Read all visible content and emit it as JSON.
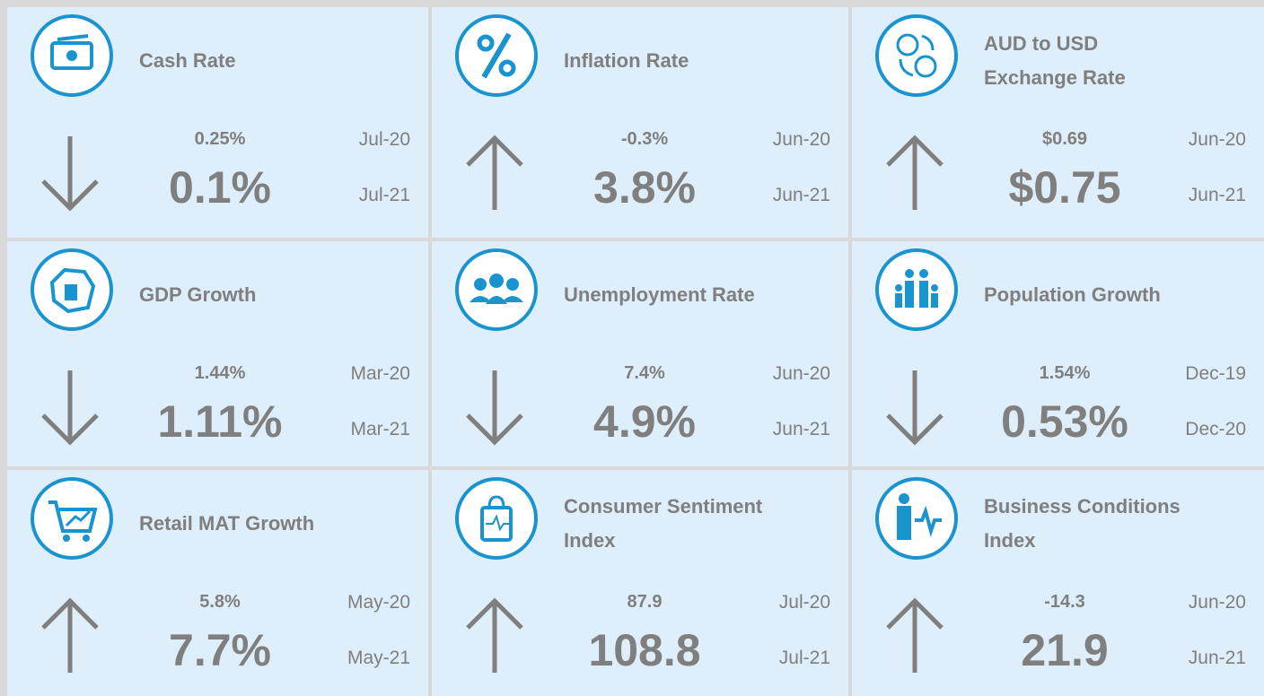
{
  "cards": [
    {
      "title": [
        "Cash Rate"
      ],
      "direction": "down",
      "previous": "0.25%",
      "previous_date": "Jul-20",
      "current": "0.1%",
      "current_date": "Jul-21"
    },
    {
      "title": [
        "Inflation Rate"
      ],
      "direction": "up",
      "previous": "-0.3%",
      "previous_date": "Jun-20",
      "current": "3.8%",
      "current_date": "Jun-21"
    },
    {
      "title": [
        "AUD to USD",
        "Exchange Rate"
      ],
      "direction": "up",
      "previous": "$0.69",
      "previous_date": "Jun-20",
      "current": "$0.75",
      "current_date": "Jun-21"
    },
    {
      "title": [
        "GDP Growth"
      ],
      "direction": "down",
      "previous": "1.44%",
      "previous_date": "Mar-20",
      "current": "1.11%",
      "current_date": "Mar-21"
    },
    {
      "title": [
        "Unemployment Rate"
      ],
      "direction": "down",
      "previous": "7.4%",
      "previous_date": "Jun-20",
      "current": "4.9%",
      "current_date": "Jun-21"
    },
    {
      "title": [
        "Population Growth"
      ],
      "direction": "down",
      "previous": "1.54%",
      "previous_date": "Dec-19",
      "current": "0.53%",
      "current_date": "Dec-20"
    },
    {
      "title": [
        "Retail MAT Growth"
      ],
      "direction": "up",
      "previous": "5.8%",
      "previous_date": "May-20",
      "current": "7.7%",
      "current_date": "May-21"
    },
    {
      "title": [
        "Consumer Sentiment",
        "Index"
      ],
      "direction": "up",
      "previous": "87.9",
      "previous_date": "Jul-20",
      "current": "108.8",
      "current_date": "Jul-21"
    },
    {
      "title": [
        "Business Conditions",
        "Index"
      ],
      "direction": "up",
      "previous": "-14.3",
      "previous_date": "Jun-20",
      "current": "21.9",
      "current_date": "Jun-21"
    }
  ]
}
